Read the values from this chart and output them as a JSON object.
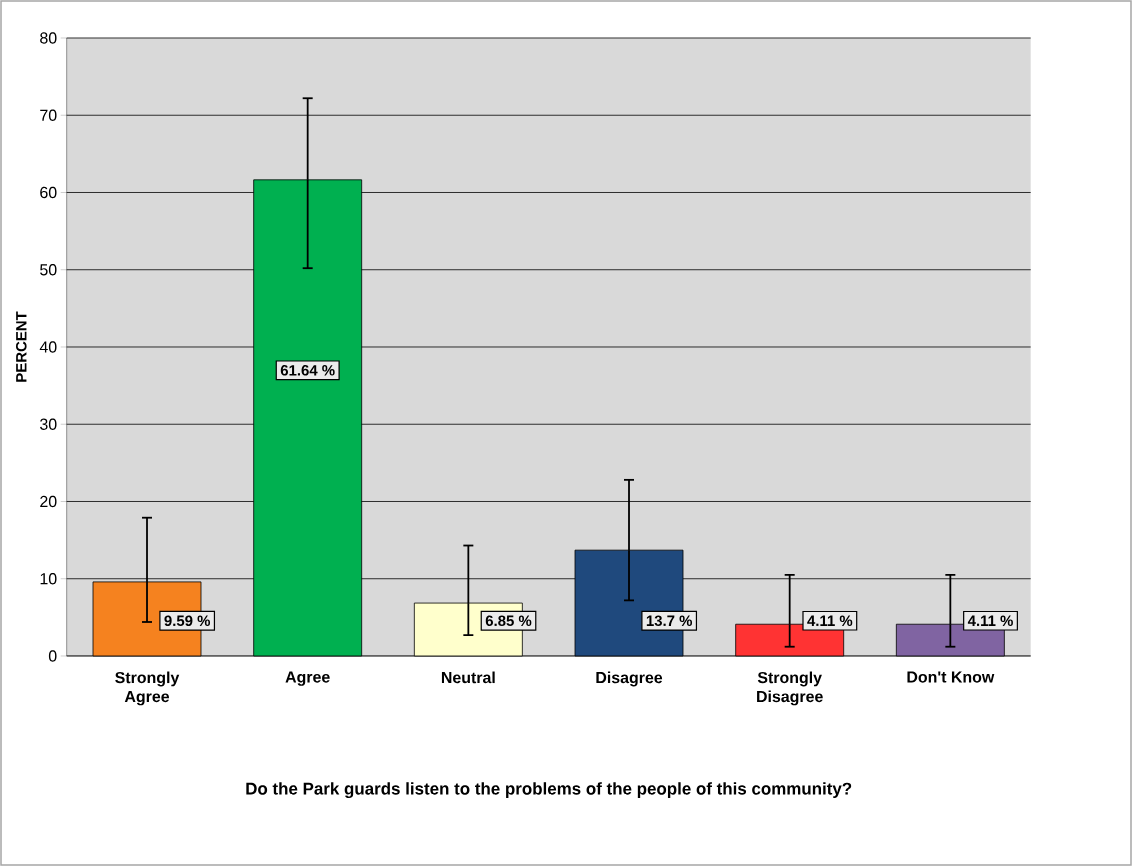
{
  "chart_data": {
    "type": "bar",
    "xlabel": "Do the Park guards listen to the problems of the people of this community?",
    "ylabel": "PERCENT",
    "categories": [
      "Strongly Agree",
      "Agree",
      "Neutral",
      "Disagree",
      "Strongly Disagree",
      "Don't Know"
    ],
    "values": [
      9.59,
      61.64,
      6.85,
      13.7,
      4.11,
      4.11
    ],
    "value_labels": [
      "9.59 %",
      "61.64 %",
      "6.85 %",
      "13.7 %",
      "4.11 %",
      "4.11 %"
    ],
    "colors": [
      "#f5821f",
      "#00b050",
      "#ffffcc",
      "#1f497d",
      "#ff3333",
      "#8064a2"
    ],
    "errors": [
      [
        4.4,
        17.9
      ],
      [
        50.2,
        72.2
      ],
      [
        2.7,
        14.3
      ],
      [
        7.2,
        22.8
      ],
      [
        1.2,
        10.5
      ],
      [
        1.2,
        10.5
      ]
    ],
    "ylim": [
      0,
      80
    ],
    "yticks": [
      0,
      10,
      20,
      30,
      40,
      50,
      60,
      70,
      80
    ],
    "grid": "y"
  }
}
